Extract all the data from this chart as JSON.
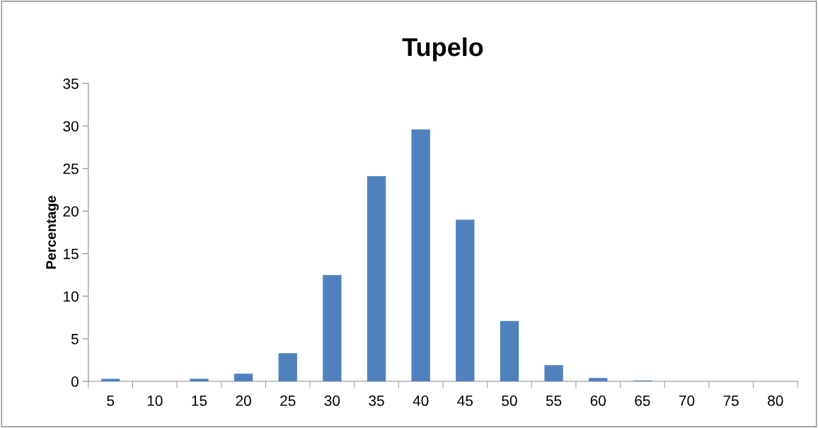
{
  "chart_data": {
    "type": "bar",
    "title": "Tupelo",
    "ylabel": "Percentage",
    "categories": [
      "5",
      "10",
      "15",
      "20",
      "25",
      "30",
      "35",
      "40",
      "45",
      "50",
      "55",
      "60",
      "65",
      "70",
      "75",
      "80"
    ],
    "values": [
      0.3,
      0,
      0.3,
      0.9,
      3.3,
      12.5,
      24.1,
      29.6,
      19.0,
      7.1,
      1.9,
      0.4,
      0.1,
      null,
      0,
      0
    ],
    "color": "#4f81bd",
    "ylim": [
      0,
      35
    ],
    "yticks": [
      0,
      5,
      10,
      15,
      20,
      25,
      30,
      35
    ],
    "grid": false,
    "legend": false
  }
}
